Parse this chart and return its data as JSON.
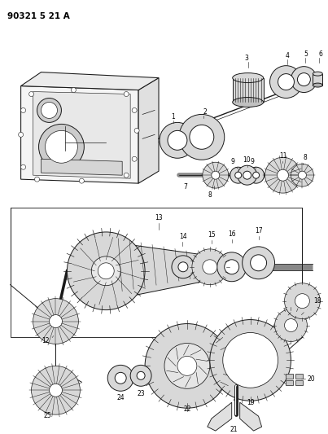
{
  "title": "90321 5 21 A",
  "bg": "#ffffff",
  "lc": "#1a1a1a",
  "gc": "#d8d8d8",
  "fig_w": 4.03,
  "fig_h": 5.33,
  "dpi": 100
}
